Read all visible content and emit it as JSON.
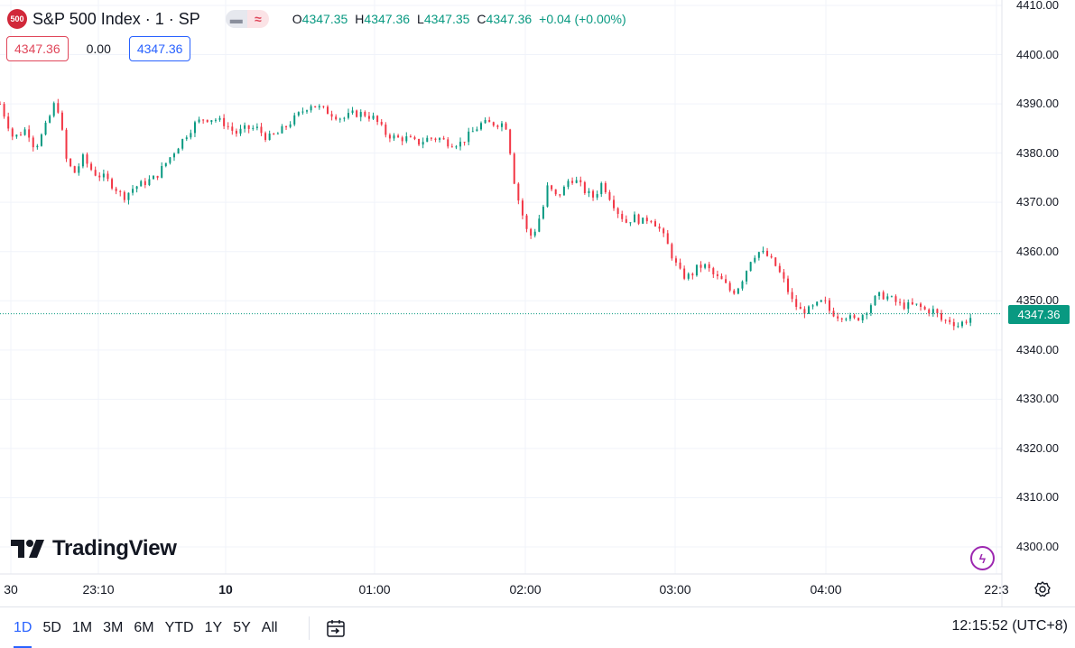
{
  "header": {
    "symbol_badge": "500",
    "title": "S&P 500 Index · 1 · SP",
    "pill_icons": [
      "minus-icon",
      "wave-icon"
    ],
    "pill_glyphs": [
      "▬",
      "≈"
    ],
    "ohlc": {
      "o_key": "O",
      "o_val": "4347.35",
      "h_key": "H",
      "h_val": "4347.36",
      "l_key": "L",
      "l_val": "4347.35",
      "c_key": "C",
      "c_val": "4347.36",
      "change": "+0.04 (+0.00%)"
    }
  },
  "price_boxes": {
    "sell": "4347.36",
    "spread": "0.00",
    "buy": "4347.36"
  },
  "watermark": "TradingView",
  "last_price_label": "4347.36",
  "colors": {
    "up": "#089981",
    "down": "#f23645",
    "grid": "#f0f3fa",
    "accent": "#2962ff"
  },
  "chart_data": {
    "type": "candlestick",
    "x_range": [
      "22:50",
      "04:55"
    ],
    "ylim": [
      4300,
      4410
    ],
    "y_ticks": [
      4410,
      4400,
      4390,
      4380,
      4370,
      4360,
      4350,
      4340,
      4330,
      4320,
      4310,
      4300
    ],
    "y_tick_labels": [
      "4410.00",
      "4400.00",
      "4390.00",
      "4380.00",
      "4370.00",
      "4360.00",
      "4350.00",
      "4340.00",
      "4330.00",
      "4320.00",
      "4310.00",
      "4300.00"
    ],
    "x_tick_labels": [
      "30",
      "23:10",
      "10",
      "01:00",
      "02:00",
      "03:00",
      "04:00",
      "22:3"
    ],
    "last_price": 4347.36,
    "close_path": [
      [
        "22:50",
        4390
      ],
      [
        "22:55",
        4383
      ],
      [
        "23:00",
        4385
      ],
      [
        "23:03",
        4381
      ],
      [
        "23:06",
        4384
      ],
      [
        "23:09",
        4388
      ],
      [
        "23:11",
        4391
      ],
      [
        "23:13",
        4385
      ],
      [
        "23:15",
        4378
      ],
      [
        "23:18",
        4376
      ],
      [
        "23:21",
        4379
      ],
      [
        "23:25",
        4376
      ],
      [
        "23:29",
        4375
      ],
      [
        "23:33",
        4373
      ],
      [
        "23:36",
        4371
      ],
      [
        "23:40",
        4373
      ],
      [
        "23:44",
        4374
      ],
      [
        "23:48",
        4375
      ],
      [
        "23:52",
        4378
      ],
      [
        "23:56",
        4381
      ],
      [
        "00:00",
        4384
      ],
      [
        "00:03",
        4386
      ],
      [
        "00:06",
        4387
      ],
      [
        "00:10",
        4387
      ],
      [
        "00:14",
        4386
      ],
      [
        "00:18",
        4384
      ],
      [
        "00:22",
        4385
      ],
      [
        "00:26",
        4385
      ],
      [
        "00:30",
        4383
      ],
      [
        "00:34",
        4384
      ],
      [
        "00:38",
        4386
      ],
      [
        "00:42",
        4388
      ],
      [
        "00:46",
        4390
      ],
      [
        "00:50",
        4389
      ],
      [
        "00:54",
        4388
      ],
      [
        "00:58",
        4387
      ],
      [
        "01:02",
        4388
      ],
      [
        "01:06",
        4388
      ],
      [
        "01:10",
        4387
      ],
      [
        "01:14",
        4384
      ],
      [
        "01:18",
        4383
      ],
      [
        "01:22",
        4383
      ],
      [
        "01:26",
        4382
      ],
      [
        "01:30",
        4383
      ],
      [
        "01:34",
        4383
      ],
      [
        "01:38",
        4382
      ],
      [
        "01:42",
        4382
      ],
      [
        "01:46",
        4384
      ],
      [
        "01:50",
        4386
      ],
      [
        "01:54",
        4386
      ],
      [
        "01:58",
        4386
      ],
      [
        "02:00",
        4385
      ],
      [
        "02:01",
        4378
      ],
      [
        "02:03",
        4372
      ],
      [
        "02:05",
        4368
      ],
      [
        "02:07",
        4364
      ],
      [
        "02:09",
        4363
      ],
      [
        "02:11",
        4366
      ],
      [
        "02:13",
        4369
      ],
      [
        "02:15",
        4374
      ],
      [
        "02:17",
        4371
      ],
      [
        "02:20",
        4372
      ],
      [
        "02:23",
        4375
      ],
      [
        "02:26",
        4374
      ],
      [
        "02:29",
        4372
      ],
      [
        "02:32",
        4371
      ],
      [
        "02:35",
        4374
      ],
      [
        "02:38",
        4371
      ],
      [
        "02:41",
        4368
      ],
      [
        "02:44",
        4366
      ],
      [
        "02:47",
        4367
      ],
      [
        "02:50",
        4366
      ],
      [
        "02:53",
        4367
      ],
      [
        "02:56",
        4365
      ],
      [
        "02:59",
        4362
      ],
      [
        "03:02",
        4358
      ],
      [
        "03:05",
        4355
      ],
      [
        "03:08",
        4355
      ],
      [
        "03:11",
        4357
      ],
      [
        "03:14",
        4357
      ],
      [
        "03:17",
        4355
      ],
      [
        "03:20",
        4354
      ],
      [
        "03:23",
        4352
      ],
      [
        "03:25",
        4352
      ],
      [
        "03:28",
        4355
      ],
      [
        "03:31",
        4359
      ],
      [
        "03:34",
        4360
      ],
      [
        "03:37",
        4359
      ],
      [
        "03:40",
        4357
      ],
      [
        "03:43",
        4354
      ],
      [
        "03:46",
        4350
      ],
      [
        "03:49",
        4348
      ],
      [
        "03:52",
        4348
      ],
      [
        "03:55",
        4349
      ],
      [
        "03:58",
        4350
      ],
      [
        "04:00",
        4348
      ],
      [
        "04:03",
        4347
      ],
      [
        "04:06",
        4347
      ],
      [
        "04:09",
        4346
      ],
      [
        "04:12",
        4347
      ],
      [
        "04:15",
        4349
      ],
      [
        "04:18",
        4351
      ],
      [
        "04:21",
        4351
      ],
      [
        "04:24",
        4350
      ],
      [
        "04:27",
        4349
      ],
      [
        "04:30",
        4349
      ],
      [
        "04:33",
        4349
      ],
      [
        "04:36",
        4348
      ],
      [
        "04:39",
        4348
      ],
      [
        "04:42",
        4346
      ],
      [
        "04:45",
        4346
      ],
      [
        "04:48",
        4345
      ],
      [
        "04:51",
        4346
      ],
      [
        "04:54",
        4347
      ]
    ],
    "grid": true
  },
  "toolbar": {
    "ranges": [
      "1D",
      "5D",
      "1M",
      "3M",
      "6M",
      "YTD",
      "1Y",
      "5Y",
      "All"
    ],
    "active_range": "1D",
    "clock": "12:15:52 (UTC+8)"
  }
}
